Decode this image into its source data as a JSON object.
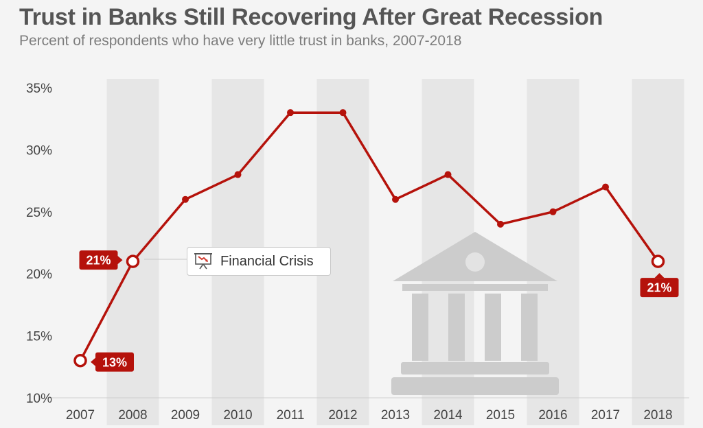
{
  "header": {
    "title": "Trust in Banks Still Recovering After Great Recession",
    "subtitle": "Percent of respondents who have very little trust in banks, 2007-2018"
  },
  "annotation": {
    "label": "Financial Crisis",
    "icon": "chart-down-icon"
  },
  "colors": {
    "line": "#b5120b",
    "band": "#e6e6e6",
    "axis_text": "#444444",
    "building": "#cccccc"
  },
  "chart_data": {
    "type": "line",
    "title": "Trust in Banks Still Recovering After Great Recession",
    "subtitle": "Percent of respondents who have very little trust in banks, 2007-2018",
    "xlabel": "",
    "ylabel": "",
    "categories": [
      "2007",
      "2008",
      "2009",
      "2010",
      "2011",
      "2012",
      "2013",
      "2014",
      "2015",
      "2016",
      "2017",
      "2018"
    ],
    "series": [
      {
        "values": [
          13,
          21,
          26,
          28,
          33,
          33,
          26,
          28,
          24,
          25,
          27,
          21
        ]
      }
    ],
    "ylim": [
      10,
      35
    ],
    "yticks": [
      10,
      15,
      20,
      25,
      30,
      35
    ],
    "ytick_labels": [
      "10%",
      "15%",
      "20%",
      "25%",
      "30%",
      "35%"
    ],
    "data_labels": [
      {
        "index": 0,
        "text": "13%"
      },
      {
        "index": 1,
        "text": "21%"
      },
      {
        "index": 11,
        "text": "21%"
      }
    ],
    "grid": false,
    "alternating_bands": true
  }
}
